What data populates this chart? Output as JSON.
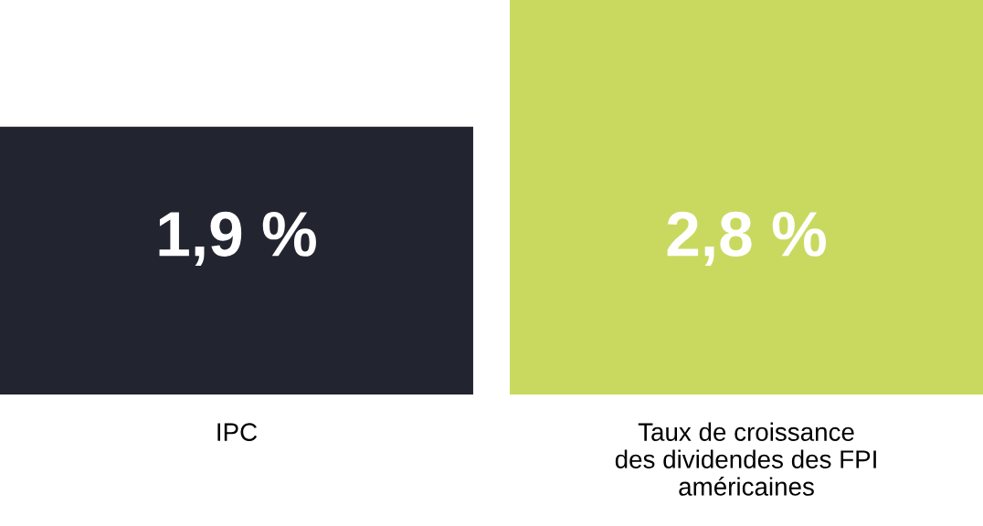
{
  "chart_data": {
    "type": "bar",
    "categories": [
      "IPC",
      "Taux de croissance\ndes dividendes des FPI\naméricaines"
    ],
    "values": [
      1.9,
      2.8
    ],
    "colors": [
      "#22252f",
      "#c9d95f"
    ],
    "value_labels": [
      "1,9 %",
      "2,8 %"
    ],
    "grid": false,
    "legend": false
  }
}
